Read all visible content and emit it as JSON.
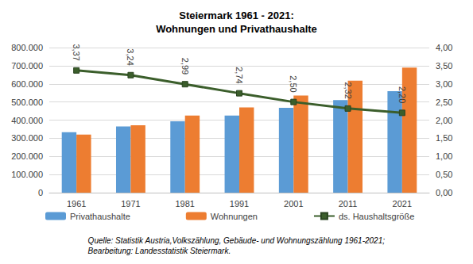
{
  "chart_data": {
    "type": "bar",
    "title": "Steiermark 1961 - 2021:\nWohnungen und Privathaushalte",
    "caption": "Quelle: Statistik Austria,Volkszählung, Gebäude- und Wohnungszählung 1961-2021;\nBearbeitung: Landesstatistik Steiermark.",
    "categories": [
      "1961",
      "1971",
      "1981",
      "1991",
      "2001",
      "2011",
      "2021"
    ],
    "series": [
      {
        "name": "Privathaushalte",
        "type": "bar",
        "color": "#5b9bd5",
        "values": [
          333000,
          365000,
          393000,
          425000,
          468000,
          510000,
          560000
        ]
      },
      {
        "name": "Wohnungen",
        "type": "bar",
        "color": "#ed7d31",
        "values": [
          320000,
          372000,
          425000,
          470000,
          535000,
          618000,
          690000
        ]
      },
      {
        "name": "ds. Haushaltsgröße",
        "type": "line",
        "color": "#3b5e2b",
        "marker": "square",
        "axis": "y2",
        "data_labels": true,
        "values": [
          3.37,
          3.24,
          2.99,
          2.74,
          2.5,
          2.32,
          2.2
        ],
        "value_labels": [
          "3,37",
          "3,24",
          "2,99",
          "2,74",
          "2,50",
          "2,32",
          "2,20"
        ]
      }
    ],
    "ylim": [
      0,
      800000
    ],
    "yticks": [
      0,
      {
        "value": 100000,
        "label": "100.000"
      },
      {
        "value": 200000,
        "label": "200.000"
      },
      {
        "value": 300000,
        "label": "300.000"
      },
      {
        "value": 400000,
        "label": "400.000"
      },
      {
        "value": 500000,
        "label": "500.000"
      },
      {
        "value": 600000,
        "label": "600.000"
      },
      {
        "value": 700000,
        "label": "700.000"
      },
      {
        "value": 800000,
        "label": "800.000"
      }
    ],
    "y2lim": [
      0,
      4
    ],
    "y2ticks": [
      {
        "value": 0,
        "label": "0,00"
      },
      {
        "value": 0.5,
        "label": "0,50"
      },
      {
        "value": 1,
        "label": "1,00"
      },
      {
        "value": 1.5,
        "label": "1,50"
      },
      {
        "value": 2,
        "label": "2,00"
      },
      {
        "value": 2.5,
        "label": "2,50"
      },
      {
        "value": 3,
        "label": "3,00"
      },
      {
        "value": 3.5,
        "label": "3,50"
      },
      {
        "value": 4,
        "label": "4,00"
      }
    ],
    "grid": true,
    "legend": "bottom"
  }
}
